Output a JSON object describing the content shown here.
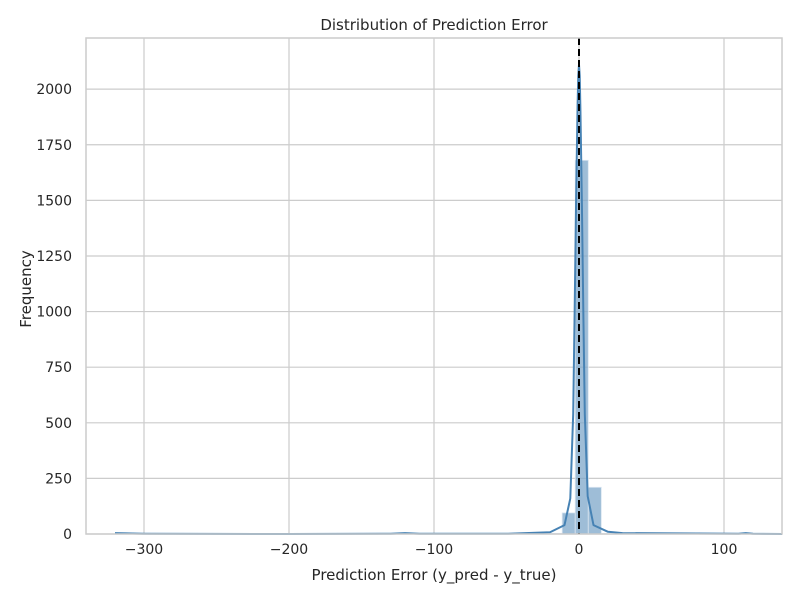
{
  "chart_data": {
    "type": "bar",
    "title": "Distribution of Prediction Error",
    "xlabel": "Prediction Error (y_pred - y_true)",
    "ylabel": "Frequency",
    "xlim": [
      -340,
      140
    ],
    "ylim": [
      0,
      2230
    ],
    "xticks": [
      -300,
      -200,
      -100,
      0,
      100
    ],
    "xtick_labels": [
      "−300",
      "−200",
      "−100",
      "0",
      "100"
    ],
    "yticks": [
      0,
      250,
      500,
      750,
      1000,
      1250,
      1500,
      1750,
      2000
    ],
    "ytick_labels": [
      "0",
      "250",
      "500",
      "750",
      "1000",
      "1250",
      "1500",
      "1750",
      "2000"
    ],
    "grid": true,
    "bins": {
      "left_edges": [
        -317.5,
        -128.5,
        -20.6,
        -11.6,
        -2.6,
        6.4,
        15.4,
        24.4,
        114.4
      ],
      "width": 9.0,
      "counts": [
        2,
        1,
        3,
        95,
        1680,
        210,
        2,
        3,
        2
      ]
    },
    "kde": {
      "x": [
        -320,
        -300,
        -200,
        -130,
        -120,
        -110,
        -50,
        -20,
        -10,
        -6,
        -4,
        -3,
        -2,
        -1,
        -0.5,
        0,
        0.5,
        1,
        2,
        3,
        4,
        6,
        10,
        20,
        30,
        110,
        115,
        120,
        140
      ],
      "y": [
        4,
        1,
        0,
        1,
        4,
        1,
        1,
        8,
        40,
        160,
        540,
        1000,
        1500,
        1920,
        2060,
        2110,
        2060,
        1900,
        1480,
        990,
        540,
        170,
        40,
        10,
        4,
        1,
        4,
        1,
        0
      ]
    },
    "reference_line": {
      "x": 0,
      "style": "dashed",
      "color": "#000000"
    },
    "colors": {
      "bar_fill": "#7da7ca",
      "bar_edge": "#dbe6f1",
      "kde_line": "#4682b4",
      "grid": "#cccccc",
      "frame": "#cccccc"
    }
  }
}
